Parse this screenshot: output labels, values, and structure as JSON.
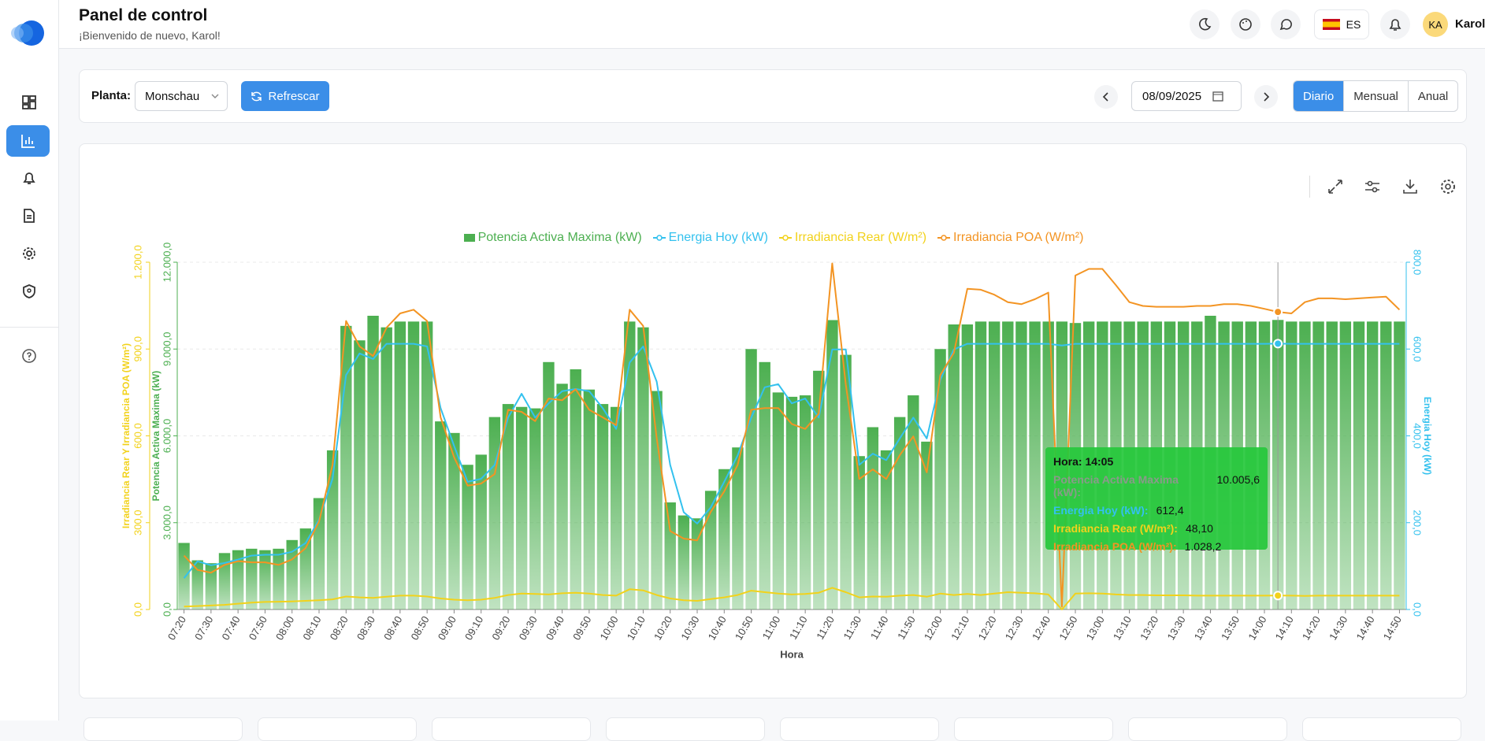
{
  "header": {
    "title": "Panel de control",
    "subtitle": "¡Bienvenido de nuevo, Karol!",
    "language": "ES",
    "avatar": "KA",
    "user": "Karol"
  },
  "toolbar": {
    "plant_label": "Planta:",
    "plant": "Monschau",
    "refresh": "Refrescar",
    "date": "08/09/2025",
    "periods": [
      "Diario",
      "Mensual",
      "Anual"
    ],
    "active_period_index": 0
  },
  "chart_data": {
    "type": "combo",
    "categories": [
      "07:20",
      null,
      "07:30",
      null,
      "07:40",
      null,
      "07:50",
      null,
      "08:00",
      null,
      "08:10",
      null,
      "08:20",
      null,
      "08:30",
      null,
      "08:40",
      null,
      "08:50",
      null,
      "09:00",
      null,
      "09:10",
      null,
      "09:20",
      null,
      "09:30",
      null,
      "09:40",
      null,
      "09:50",
      null,
      "10:00",
      null,
      "10:10",
      null,
      "10:20",
      null,
      "10:30",
      null,
      "10:40",
      null,
      "10:50",
      null,
      "11:00",
      null,
      "11:10",
      null,
      "11:20",
      null,
      "11:30",
      null,
      "11:40",
      null,
      "11:50",
      null,
      "12:00",
      null,
      "12:10",
      null,
      "12:20",
      null,
      "12:30",
      null,
      "12:40",
      null,
      "12:50",
      null,
      "13:00",
      null,
      "13:10",
      null,
      "13:20",
      null,
      "13:30",
      null,
      "13:40",
      null,
      "13:50",
      null,
      "14:00",
      null,
      "14:10",
      null,
      "14:20",
      null,
      "14:30",
      null,
      "14:40",
      null,
      "14:50"
    ],
    "series": [
      {
        "name": "Potencia Activa Maxima (kW)",
        "type": "bar",
        "axis": "y",
        "color": "#4caf50",
        "values": [
          2300,
          1700,
          1600,
          1950,
          2050,
          2100,
          2050,
          2100,
          2400,
          2800,
          3850,
          5500,
          9800,
          9300,
          10150,
          9750,
          9950,
          9950,
          9950,
          6500,
          6100,
          5000,
          5350,
          6650,
          7100,
          7000,
          6950,
          8550,
          7800,
          8300,
          7600,
          7100,
          7000,
          9950,
          9750,
          7550,
          3700,
          3250,
          3150,
          4100,
          4850,
          5600,
          9000,
          8550,
          7500,
          7350,
          7400,
          8250,
          10000,
          8800,
          5300,
          6300,
          5500,
          6650,
          7400,
          5800,
          9000,
          9850,
          9850,
          9950,
          9950,
          9950,
          9950,
          9950,
          9950,
          9950,
          9900,
          9950,
          9950,
          9950,
          9950,
          9950,
          9950,
          9950,
          9950,
          9950,
          10150,
          9950,
          9950,
          9950,
          9950,
          10005.6,
          9950,
          9950,
          9950,
          9950,
          9950,
          9950,
          9950,
          9950,
          9950
        ]
      },
      {
        "name": "Energia Hoy (kW)",
        "type": "line",
        "axis": "y2",
        "color": "#33c1ee",
        "values": [
          72,
          111,
          102,
          107,
          115,
          124,
          126,
          126,
          133,
          153,
          207,
          301,
          540,
          590,
          577,
          612,
          612,
          612,
          606,
          464,
          377,
          294,
          301,
          333,
          442,
          497,
          442,
          475,
          503,
          508,
          503,
          464,
          416,
          569,
          606,
          525,
          333,
          224,
          198,
          235,
          294,
          355,
          442,
          512,
          519,
          475,
          486,
          442,
          599,
          599,
          333,
          359,
          344,
          394,
          442,
          394,
          529,
          599,
          612,
          612,
          612,
          612,
          612,
          612,
          612,
          608,
          612,
          612,
          612,
          612,
          612,
          612,
          612,
          612,
          612,
          612,
          612,
          612,
          612,
          612,
          612,
          612.4,
          612,
          612,
          612,
          612,
          612,
          612,
          612,
          612,
          612
        ]
      },
      {
        "name": "Irradiancia Rear (W/m²)",
        "type": "line",
        "axis": "y3",
        "color": "#f2d21b",
        "values": [
          10,
          12,
          14,
          16,
          20,
          24,
          26,
          27,
          28,
          30,
          32,
          35,
          45,
          42,
          40,
          44,
          48,
          48,
          45,
          38,
          34,
          32,
          34,
          40,
          50,
          55,
          54,
          52,
          56,
          58,
          55,
          50,
          48,
          70,
          66,
          50,
          38,
          32,
          30,
          36,
          42,
          50,
          65,
          60,
          55,
          52,
          54,
          58,
          75,
          60,
          42,
          45,
          44,
          48,
          50,
          44,
          55,
          50,
          54,
          50,
          55,
          60,
          58,
          56,
          52,
          0,
          55,
          56,
          55,
          52,
          50,
          50,
          49,
          49,
          49,
          48,
          48,
          48,
          48,
          48,
          48,
          48.1,
          48,
          47,
          48,
          48,
          48,
          48,
          48,
          48,
          48
        ]
      },
      {
        "name": "Irradiancia POA (W/m²)",
        "type": "line",
        "axis": "y3",
        "color": "#f39423",
        "values": [
          186,
          137,
          127,
          154,
          167,
          163,
          163,
          154,
          173,
          212,
          304,
          500,
          997,
          909,
          876,
          974,
          1023,
          1036,
          997,
          664,
          526,
          428,
          435,
          468,
          690,
          683,
          651,
          729,
          723,
          761,
          690,
          664,
          637,
          1036,
          980,
          592,
          271,
          245,
          239,
          337,
          408,
          500,
          690,
          696,
          696,
          641,
          624,
          677,
          1196,
          778,
          451,
          484,
          451,
          533,
          598,
          474,
          810,
          886,
          1108,
          1105,
          1088,
          1062,
          1055,
          1072,
          1095,
          10,
          1154,
          1177,
          1177,
          1121,
          1062,
          1049,
          1046,
          1046,
          1046,
          1049,
          1049,
          1055,
          1055,
          1049,
          1039,
          1028.2,
          1023,
          1062,
          1075,
          1075,
          1072,
          1075,
          1078,
          1081,
          1036
        ]
      }
    ],
    "xlabel": "Hora",
    "ylabel": "Potencia Activa Maxima (kW)",
    "ylim": [
      0,
      12000
    ],
    "yticks": [
      {
        "value": 0,
        "label": "0,0"
      },
      {
        "value": 3000,
        "label": "3.000,0"
      },
      {
        "value": 6000,
        "label": "6.000,0"
      },
      {
        "value": 9000,
        "label": "9.000,0"
      },
      {
        "value": 12000,
        "label": "12.000,0"
      }
    ],
    "y2label": "Energia Hoy (kW)",
    "y2lim": [
      0,
      800
    ],
    "y2ticks": [
      {
        "value": 0,
        "label": "0,0"
      },
      {
        "value": 200,
        "label": "200,0"
      },
      {
        "value": 400,
        "label": "400,0"
      },
      {
        "value": 600,
        "label": "600,0"
      },
      {
        "value": 800,
        "label": "800,0"
      }
    ],
    "y3label": "Irradiancia Rear Y Irradiancia POA (W/m²)",
    "y3lim": [
      0,
      1200
    ],
    "y3ticks": [
      {
        "value": 0,
        "label": "0,0"
      },
      {
        "value": 300,
        "label": "300,0"
      },
      {
        "value": 600,
        "label": "600,0"
      },
      {
        "value": 900,
        "label": "900,0"
      },
      {
        "value": 1200,
        "label": "1.200,0"
      }
    ],
    "grid": true
  },
  "tooltip": {
    "index": 81,
    "title": "Hora: 14:05",
    "items": [
      {
        "label": "Potencia Activa Maxima (kW):",
        "value": "10.005,6"
      },
      {
        "label": "Energia Hoy (kW):",
        "value": "612,4"
      },
      {
        "label": "Irradiancia Rear (W/m²):",
        "value": "48,10"
      },
      {
        "label": "Irradiancia POA (W/m²):",
        "value": "1.028,2"
      }
    ]
  }
}
